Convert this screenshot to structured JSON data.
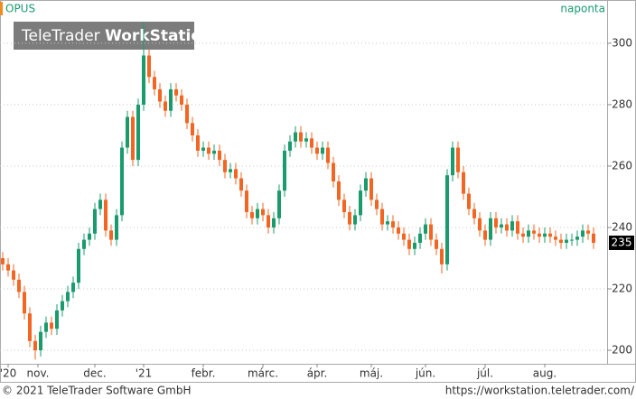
{
  "chart_data": {
    "type": "candlestick",
    "interval": "naponta",
    "watermark": {
      "brand": "TeleTrader",
      "product": "WorkStation"
    },
    "series": [
      {
        "name": "OPUS",
        "up_color": "#1a9b6c",
        "down_color": "#f26522",
        "open": [
          230,
          228,
          226,
          223,
          219,
          212,
          203,
          200,
          206,
          209,
          207,
          213,
          216,
          219,
          222,
          233,
          236,
          238,
          246,
          249,
          239,
          236,
          244,
          266,
          276,
          262,
          280,
          296,
          289,
          285,
          281,
          278,
          285,
          283,
          280,
          274,
          270,
          265,
          266,
          264,
          265,
          262,
          258,
          259,
          256,
          252,
          245,
          243,
          246,
          244,
          240,
          243,
          252,
          265,
          268,
          271,
          268,
          269,
          266,
          264,
          266,
          261,
          255,
          249,
          245,
          241,
          244,
          252,
          256,
          249,
          246,
          241,
          242,
          240,
          238,
          236,
          233,
          235,
          238,
          241,
          236,
          233,
          228,
          257,
          266,
          258,
          251,
          246,
          243,
          239,
          236,
          243,
          240,
          241,
          239,
          242,
          238,
          237,
          239,
          238,
          237,
          238,
          237,
          236,
          235,
          236,
          236,
          237,
          239,
          238
        ],
        "high": [
          232,
          230,
          228,
          225,
          221,
          214,
          205,
          208,
          211,
          211,
          215,
          218,
          221,
          224,
          235,
          238,
          240,
          248,
          251,
          251,
          241,
          246,
          268,
          278,
          278,
          282,
          307,
          298,
          291,
          287,
          283,
          287,
          287,
          285,
          282,
          276,
          272,
          268,
          268,
          267,
          267,
          264,
          261,
          261,
          258,
          254,
          247,
          248,
          248,
          246,
          245,
          254,
          267,
          270,
          273,
          273,
          271,
          271,
          268,
          268,
          268,
          263,
          257,
          251,
          247,
          246,
          254,
          258,
          258,
          251,
          248,
          244,
          244,
          242,
          240,
          238,
          237,
          240,
          243,
          243,
          238,
          235,
          259,
          268,
          268,
          260,
          253,
          248,
          245,
          241,
          245,
          245,
          243,
          243,
          244,
          244,
          240,
          241,
          241,
          240,
          240,
          240,
          239,
          238,
          238,
          238,
          239,
          241,
          241,
          240
        ],
        "low": [
          226,
          224,
          221,
          217,
          210,
          201,
          197,
          198,
          204,
          205,
          205,
          211,
          214,
          217,
          220,
          231,
          234,
          236,
          244,
          237,
          234,
          234,
          242,
          264,
          260,
          260,
          278,
          287,
          283,
          279,
          276,
          276,
          281,
          278,
          272,
          268,
          263,
          263,
          262,
          262,
          260,
          256,
          256,
          254,
          250,
          243,
          241,
          241,
          242,
          238,
          238,
          241,
          250,
          263,
          266,
          266,
          266,
          264,
          262,
          262,
          259,
          253,
          247,
          243,
          239,
          239,
          242,
          250,
          247,
          244,
          239,
          239,
          238,
          236,
          234,
          231,
          231,
          233,
          236,
          234,
          231,
          225,
          226,
          255,
          256,
          249,
          244,
          241,
          237,
          234,
          234,
          238,
          238,
          237,
          237,
          236,
          235,
          235,
          236,
          235,
          235,
          235,
          234,
          233,
          233,
          234,
          234,
          235,
          236,
          233
        ],
        "close": [
          228,
          226,
          223,
          219,
          212,
          203,
          200,
          206,
          209,
          207,
          213,
          216,
          219,
          222,
          233,
          236,
          238,
          246,
          249,
          239,
          236,
          244,
          266,
          276,
          262,
          280,
          296,
          289,
          285,
          281,
          278,
          285,
          283,
          280,
          274,
          270,
          265,
          266,
          264,
          265,
          262,
          258,
          259,
          256,
          252,
          245,
          243,
          246,
          244,
          240,
          243,
          252,
          265,
          268,
          271,
          268,
          269,
          266,
          264,
          266,
          261,
          255,
          249,
          245,
          241,
          244,
          252,
          256,
          249,
          246,
          241,
          242,
          240,
          238,
          236,
          233,
          235,
          238,
          241,
          236,
          233,
          228,
          257,
          266,
          258,
          251,
          246,
          243,
          239,
          236,
          243,
          240,
          241,
          239,
          242,
          238,
          237,
          239,
          238,
          237,
          238,
          237,
          236,
          235,
          236,
          236,
          237,
          239,
          238,
          235
        ]
      }
    ],
    "xlim": [
      0,
      112
    ],
    "xticks": [
      {
        "value": 1.5,
        "label": "'20"
      },
      {
        "value": 7,
        "label": "nov."
      },
      {
        "value": 17.5,
        "label": "dec."
      },
      {
        "value": 26.5,
        "label": "'21"
      },
      {
        "value": 37.5,
        "label": "febr."
      },
      {
        "value": 48.5,
        "label": "márc."
      },
      {
        "value": 58.5,
        "label": "ápr."
      },
      {
        "value": 68.5,
        "label": "máj."
      },
      {
        "value": 78.5,
        "label": "jún."
      },
      {
        "value": 89.5,
        "label": "júl."
      },
      {
        "value": 100.5,
        "label": "aug."
      }
    ],
    "ylim": [
      195.6,
      308.2
    ],
    "yticks": [
      200,
      220,
      240,
      260,
      280,
      300
    ],
    "grid": true
  },
  "footer": {
    "copyright": "© 2021 TeleTrader Software GmbH",
    "url": "https://workstation.teletrader.com/"
  }
}
